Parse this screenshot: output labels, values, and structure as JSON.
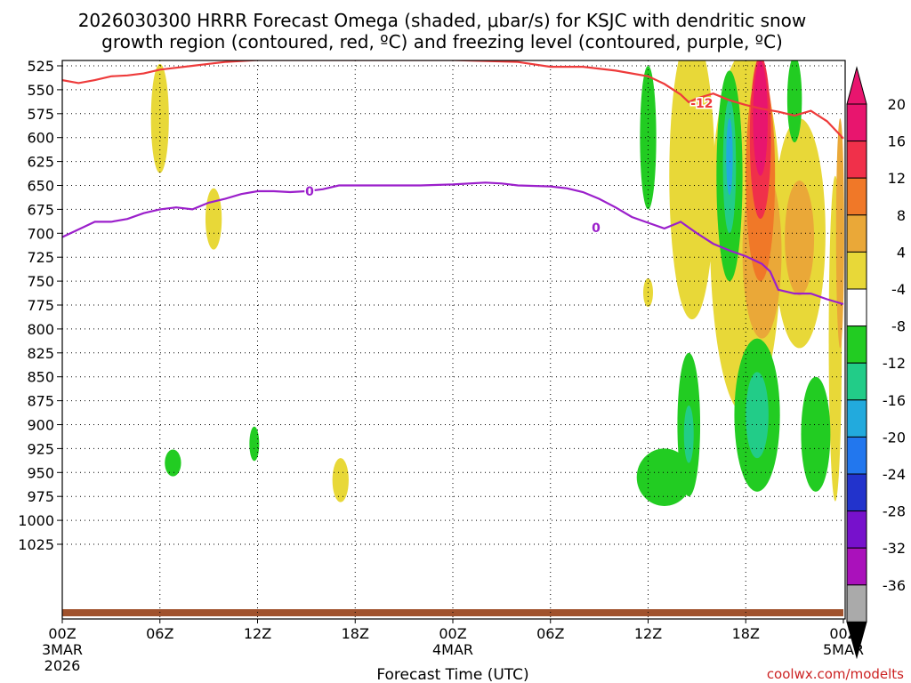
{
  "chart_data": {
    "type": "heatmap",
    "title_line1": "2026030300 HRRR Forecast Omega (shaded, μbar/s) for KSJC with dendritic snow",
    "title_line2": "growth region (contoured, red, ºC) and freezing level (contoured, purple, ºC)",
    "xlabel": "Forecast Time (UTC)",
    "credit": "coolwx.com/modelts",
    "x_hours_range": [
      0,
      48
    ],
    "x_ticks": [
      {
        "hour": 0,
        "label": "00Z",
        "sub1": "3MAR",
        "sub2": "2026"
      },
      {
        "hour": 6,
        "label": "06Z"
      },
      {
        "hour": 12,
        "label": "12Z"
      },
      {
        "hour": 18,
        "label": "18Z"
      },
      {
        "hour": 24,
        "label": "00Z",
        "sub1": "4MAR"
      },
      {
        "hour": 30,
        "label": "06Z"
      },
      {
        "hour": 36,
        "label": "12Z"
      },
      {
        "hour": 42,
        "label": "18Z"
      },
      {
        "hour": 48,
        "label": "00Z",
        "sub1": "5MAR"
      }
    ],
    "y_label_levels": [
      525,
      550,
      575,
      600,
      625,
      650,
      675,
      700,
      725,
      750,
      775,
      800,
      825,
      850,
      875,
      900,
      925,
      950,
      975,
      1000,
      1025
    ],
    "colorbar": {
      "labels": [
        "20",
        "16",
        "12",
        "8",
        "4",
        "-4",
        "-8",
        "-12",
        "-16",
        "-20",
        "-24",
        "-28",
        "-32",
        "-36"
      ],
      "colors": [
        "#e8156e",
        "#f0304a",
        "#f07828",
        "#eaa838",
        "#e8d838",
        "#ffffff",
        "#22cc22",
        "#22cc88",
        "#22aadd",
        "#2277ee",
        "#2233cc",
        "#7711cc",
        "#aa11bb",
        "#aaaaaa"
      ],
      "top_arrow_color": "#e8156e",
      "bottom_arrow_color": "#000000"
    },
    "contour_labels": {
      "dgz": "-12",
      "freezing": "0"
    },
    "series": [
      {
        "name": "dendritic growth -12°C",
        "color": "#ee3b3b",
        "points": [
          [
            0,
            540
          ],
          [
            1,
            543
          ],
          [
            2,
            540
          ],
          [
            3,
            536
          ],
          [
            4,
            535
          ],
          [
            5,
            533
          ],
          [
            6,
            529
          ],
          [
            7,
            527
          ],
          [
            8,
            525
          ],
          [
            9,
            523
          ],
          [
            10,
            521
          ],
          [
            12,
            519
          ],
          [
            18,
            519
          ],
          [
            24,
            519
          ],
          [
            28,
            521
          ],
          [
            30,
            526
          ],
          [
            32,
            526
          ],
          [
            34,
            530
          ],
          [
            36,
            536
          ],
          [
            37,
            544
          ],
          [
            38,
            555
          ],
          [
            38.5,
            563
          ],
          [
            39,
            559
          ],
          [
            40,
            554
          ],
          [
            41,
            561
          ],
          [
            42,
            566
          ],
          [
            43,
            570
          ],
          [
            44,
            573
          ],
          [
            45,
            577
          ],
          [
            46,
            572
          ],
          [
            47,
            583
          ],
          [
            48,
            601
          ]
        ]
      },
      {
        "name": "freezing level 0°C",
        "color": "#9b1fcb",
        "points": [
          [
            0,
            704
          ],
          [
            1,
            696
          ],
          [
            2,
            688
          ],
          [
            3,
            688
          ],
          [
            4,
            685
          ],
          [
            5,
            679
          ],
          [
            6,
            675
          ],
          [
            7,
            673
          ],
          [
            8,
            675
          ],
          [
            9,
            668
          ],
          [
            10,
            664
          ],
          [
            11,
            659
          ],
          [
            12,
            656
          ],
          [
            13,
            656
          ],
          [
            14,
            657
          ],
          [
            15,
            656
          ],
          [
            16,
            654
          ],
          [
            17,
            650
          ],
          [
            18,
            650
          ],
          [
            20,
            650
          ],
          [
            22,
            650
          ],
          [
            24,
            649
          ],
          [
            26,
            647
          ],
          [
            27,
            648
          ],
          [
            28,
            650
          ],
          [
            30,
            651
          ],
          [
            31,
            653
          ],
          [
            32,
            657
          ],
          [
            33,
            664
          ],
          [
            34,
            673
          ],
          [
            35,
            683
          ],
          [
            36,
            689
          ],
          [
            37,
            695
          ],
          [
            38,
            688
          ],
          [
            39,
            700
          ],
          [
            40,
            711
          ],
          [
            41,
            718
          ],
          [
            42,
            724
          ],
          [
            43,
            732
          ],
          [
            43.5,
            740
          ],
          [
            44,
            759
          ],
          [
            45,
            763
          ],
          [
            46,
            763
          ],
          [
            47,
            769
          ],
          [
            48,
            774
          ]
        ]
      }
    ],
    "shaded_regions": [
      {
        "value": 4,
        "color": "#e8d838",
        "center_hour": 6.0,
        "center_level": 580,
        "half_hours": 0.55,
        "half_levels": 57
      },
      {
        "value": 4,
        "color": "#e8d838",
        "center_hour": 9.3,
        "center_level": 685,
        "half_hours": 0.5,
        "half_levels": 32
      },
      {
        "value": 4,
        "color": "#e8d838",
        "center_hour": 17.1,
        "center_level": 958,
        "half_hours": 0.5,
        "half_levels": 23
      },
      {
        "value": 4,
        "color": "#e8d838",
        "center_hour": 36.0,
        "center_level": 762,
        "half_hours": 0.3,
        "half_levels": 15
      },
      {
        "value": 4,
        "color": "#e8d838",
        "center_hour": 38.7,
        "center_level": 640,
        "half_hours": 1.4,
        "half_levels": 150
      },
      {
        "value": 4,
        "color": "#e8d838",
        "center_hour": 42.0,
        "center_level": 700,
        "half_hours": 2.2,
        "half_levels": 190
      },
      {
        "value": 4,
        "color": "#e8d838",
        "center_hour": 45.3,
        "center_level": 700,
        "half_hours": 1.6,
        "half_levels": 120
      },
      {
        "value": 4,
        "color": "#e8d838",
        "center_hour": 47.5,
        "center_level": 810,
        "half_hours": 0.4,
        "half_levels": 170
      },
      {
        "value": 8,
        "color": "#eaa838",
        "center_hour": 43.0,
        "center_level": 720,
        "half_hours": 1.2,
        "half_levels": 90
      },
      {
        "value": 8,
        "color": "#eaa838",
        "center_hour": 45.3,
        "center_level": 705,
        "half_hours": 0.9,
        "half_levels": 60
      },
      {
        "value": 8,
        "color": "#eaa838",
        "center_hour": 47.8,
        "center_level": 700,
        "half_hours": 0.25,
        "half_levels": 120
      },
      {
        "value": 12,
        "color": "#f07828",
        "center_hour": 42.9,
        "center_level": 640,
        "half_hours": 0.9,
        "half_levels": 110
      },
      {
        "value": 16,
        "color": "#f0304a",
        "center_hour": 42.9,
        "center_level": 600,
        "half_hours": 0.65,
        "half_levels": 85
      },
      {
        "value": 20,
        "color": "#e8156e",
        "center_hour": 42.9,
        "center_level": 580,
        "half_hours": 0.45,
        "half_levels": 60
      },
      {
        "value": -4,
        "color": "#22cc22",
        "center_hour": 6.8,
        "center_level": 940,
        "half_hours": 0.5,
        "half_levels": 14
      },
      {
        "value": -4,
        "color": "#22cc22",
        "center_hour": 11.8,
        "center_level": 920,
        "half_hours": 0.3,
        "half_levels": 18
      },
      {
        "value": -4,
        "color": "#22cc22",
        "center_hour": 36.0,
        "center_level": 600,
        "half_hours": 0.5,
        "half_levels": 75
      },
      {
        "value": -4,
        "color": "#22cc22",
        "center_hour": 41.0,
        "center_level": 640,
        "half_hours": 0.8,
        "half_levels": 110
      },
      {
        "value": -4,
        "color": "#22cc22",
        "center_hour": 45.0,
        "center_level": 560,
        "half_hours": 0.45,
        "half_levels": 45
      },
      {
        "value": -4,
        "color": "#22cc22",
        "center_hour": 37.0,
        "center_level": 955,
        "half_hours": 1.7,
        "half_levels": 30
      },
      {
        "value": -4,
        "color": "#22cc22",
        "center_hour": 38.5,
        "center_level": 900,
        "half_hours": 0.7,
        "half_levels": 75
      },
      {
        "value": -4,
        "color": "#22cc22",
        "center_hour": 42.7,
        "center_level": 890,
        "half_hours": 1.4,
        "half_levels": 80
      },
      {
        "value": -4,
        "color": "#22cc22",
        "center_hour": 46.3,
        "center_level": 910,
        "half_hours": 0.9,
        "half_levels": 60
      },
      {
        "value": -8,
        "color": "#22cc88",
        "center_hour": 41.0,
        "center_level": 630,
        "half_hours": 0.4,
        "half_levels": 70
      },
      {
        "value": -8,
        "color": "#22cc88",
        "center_hour": 42.7,
        "center_level": 890,
        "half_hours": 0.7,
        "half_levels": 45
      },
      {
        "value": -8,
        "color": "#22cc88",
        "center_hour": 38.5,
        "center_level": 910,
        "half_hours": 0.3,
        "half_levels": 30
      },
      {
        "value": -12,
        "color": "#22aadd",
        "center_hour": 41.0,
        "center_level": 620,
        "half_hours": 0.2,
        "half_levels": 40
      }
    ]
  }
}
